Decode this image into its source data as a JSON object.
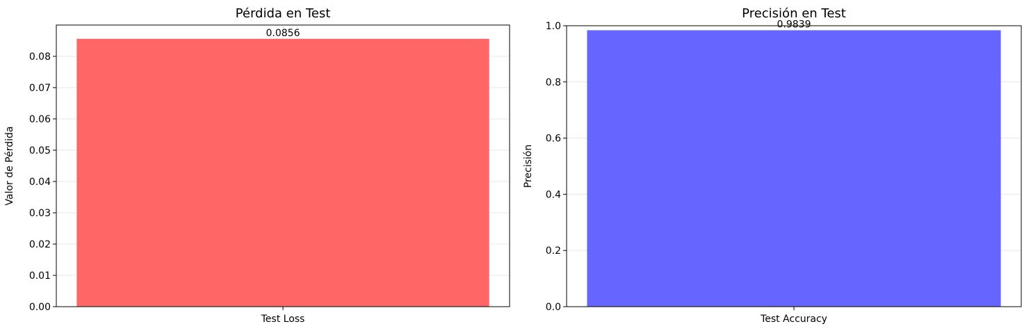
{
  "chart_data": [
    {
      "type": "bar",
      "title": "Pérdida en Test",
      "xlabel": "",
      "ylabel": "Valor de Pérdida",
      "categories": [
        "Test Loss"
      ],
      "values": [
        0.0856
      ],
      "data_labels": [
        "0.0856"
      ],
      "ylim": [
        0,
        0.09
      ],
      "yticks": [
        0.0,
        0.01,
        0.02,
        0.03,
        0.04,
        0.05,
        0.06,
        0.07,
        0.08
      ],
      "ytick_labels": [
        "0.00",
        "0.01",
        "0.02",
        "0.03",
        "0.04",
        "0.05",
        "0.06",
        "0.07",
        "0.08"
      ],
      "bar_color": "#ff6666",
      "grid": true
    },
    {
      "type": "bar",
      "title": "Precisión en Test",
      "xlabel": "",
      "ylabel": "Precisión",
      "categories": [
        "Test Accuracy"
      ],
      "values": [
        0.9839
      ],
      "data_labels": [
        "0.9839"
      ],
      "ylim": [
        0,
        1.0
      ],
      "yticks": [
        0.0,
        0.2,
        0.4,
        0.6,
        0.8,
        1.0
      ],
      "ytick_labels": [
        "0.0",
        "0.2",
        "0.4",
        "0.6",
        "0.8",
        "1.0"
      ],
      "bar_color": "#6666ff",
      "grid": true
    }
  ]
}
